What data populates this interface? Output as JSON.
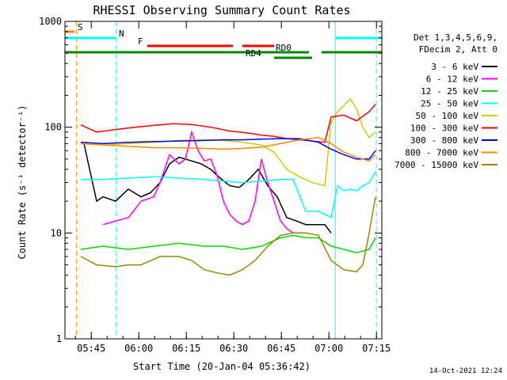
{
  "title": "RHESSI Observing Summary Count Rates",
  "xlabel": "Start Time (20-Jan-04 05:36:42)",
  "ylabel": "Count Rate (s⁻¹ detector⁻¹)",
  "timestamp": "14-Oct-2021 12:24",
  "legend_header": [
    "Det 1,3,4,5,6,9,",
    "FDecim 2, Att 0"
  ],
  "chart_data": {
    "type": "line",
    "x_unit": "minutes since 05:36:42",
    "xlim": [
      0,
      100
    ],
    "ylim": [
      1,
      1000
    ],
    "y_scale": "log",
    "xticks": [
      {
        "label": "05:45",
        "t": 8.3
      },
      {
        "label": "06:00",
        "t": 23.3
      },
      {
        "label": "06:15",
        "t": 38.3
      },
      {
        "label": "06:30",
        "t": 53.3
      },
      {
        "label": "06:45",
        "t": 68.3
      },
      {
        "label": "07:00",
        "t": 83.3
      },
      {
        "label": "07:15",
        "t": 98.3
      }
    ],
    "yticks": [
      {
        "label": "1",
        "v": 1
      },
      {
        "label": "10",
        "v": 10
      },
      {
        "label": "100",
        "v": 100
      },
      {
        "label": "1000",
        "v": 1000
      }
    ],
    "legend_position": "right",
    "series": [
      {
        "name": "3 - 6 keV",
        "color": "#000000",
        "x": [
          6,
          10,
          12,
          16,
          20,
          24,
          27,
          30,
          33,
          36,
          40,
          43,
          46,
          49,
          52,
          55,
          58,
          61,
          64,
          67,
          70,
          73,
          76,
          79,
          82,
          84
        ],
        "y": [
          70,
          20,
          22,
          20,
          26,
          22,
          24,
          30,
          45,
          52,
          48,
          45,
          40,
          33,
          28,
          27,
          32,
          40,
          28,
          22,
          14,
          13,
          12,
          12,
          12,
          10
        ]
      },
      {
        "name": "6 - 12 keV",
        "color": "#ff00ff",
        "x": [
          12,
          16,
          20,
          24,
          28,
          30,
          33,
          36,
          38,
          40,
          42,
          44,
          46,
          48,
          50,
          52,
          54,
          56,
          58,
          60,
          62,
          64,
          66,
          68,
          70,
          72
        ],
        "y": [
          12,
          13,
          14,
          20,
          22,
          30,
          55,
          45,
          50,
          90,
          60,
          48,
          50,
          35,
          20,
          15,
          13,
          12,
          13,
          20,
          50,
          30,
          20,
          13,
          11,
          10
        ]
      },
      {
        "name": "12 - 25 keV",
        "color": "#00dd00",
        "x": [
          5,
          12,
          20,
          28,
          36,
          44,
          50,
          56,
          62,
          68,
          72,
          76,
          80,
          84,
          88,
          92,
          96,
          98
        ],
        "y": [
          7,
          7.5,
          7,
          7.5,
          8,
          7.5,
          7.5,
          7,
          7.5,
          9,
          9.5,
          9,
          9,
          7.5,
          7,
          6.5,
          7,
          9
        ]
      },
      {
        "name": "25 - 50 keV",
        "color": "#00ffff",
        "x": [
          5,
          12,
          20,
          28,
          36,
          44,
          50,
          56,
          62,
          68,
          72,
          76,
          80,
          84,
          86,
          88,
          90,
          92,
          94,
          96,
          98
        ],
        "y": [
          32,
          32,
          33,
          34,
          33,
          32,
          31,
          30,
          31,
          32,
          32,
          16,
          16,
          14,
          28,
          25,
          26,
          25,
          28,
          30,
          38
        ]
      },
      {
        "name": "50 - 100 keV",
        "color": "#cccc00",
        "x": [
          5,
          12,
          20,
          28,
          36,
          44,
          50,
          56,
          62,
          66,
          70,
          74,
          78,
          82,
          84,
          86,
          88,
          90,
          92,
          94,
          96,
          98
        ],
        "y": [
          70,
          68,
          70,
          72,
          75,
          76,
          75,
          72,
          68,
          58,
          40,
          34,
          30,
          28,
          110,
          140,
          160,
          185,
          150,
          100,
          80,
          90
        ]
      },
      {
        "name": "100 - 300 keV",
        "color": "#ff0000",
        "x": [
          5,
          10,
          16,
          22,
          28,
          34,
          40,
          46,
          52,
          58,
          62,
          66,
          70,
          74,
          78,
          82,
          84,
          88,
          92,
          96,
          98
        ],
        "y": [
          105,
          90,
          95,
          100,
          104,
          108,
          106,
          100,
          92,
          88,
          84,
          82,
          78,
          76,
          74,
          72,
          125,
          130,
          115,
          140,
          165
        ]
      },
      {
        "name": "300 - 800 keV",
        "color": "#0000ff",
        "x": [
          5,
          12,
          20,
          28,
          36,
          44,
          50,
          56,
          62,
          68,
          74,
          80,
          84,
          88,
          92,
          96,
          98
        ],
        "y": [
          72,
          70,
          72,
          73,
          74,
          75,
          76,
          76,
          77,
          78,
          78,
          72,
          62,
          55,
          50,
          50,
          60
        ]
      },
      {
        "name": "800 - 7000 keV",
        "color": "#ff8800",
        "x": [
          5,
          12,
          20,
          28,
          36,
          44,
          50,
          56,
          62,
          68,
          74,
          80,
          84,
          88,
          92,
          96,
          98
        ],
        "y": [
          70,
          68,
          66,
          64,
          64,
          63,
          62,
          63,
          65,
          70,
          76,
          80,
          70,
          58,
          52,
          48,
          55
        ]
      },
      {
        "name": "7000 - 15000 keV",
        "color": "#998800",
        "x": [
          5,
          10,
          16,
          20,
          24,
          30,
          36,
          40,
          44,
          48,
          52,
          56,
          60,
          64,
          68,
          72,
          76,
          80,
          84,
          88,
          92,
          94,
          96,
          98
        ],
        "y": [
          6,
          5,
          4.8,
          5,
          5,
          6,
          6,
          5.5,
          4.5,
          4.2,
          4,
          4.5,
          5.5,
          7.5,
          9.5,
          10,
          10,
          9.5,
          5.5,
          4.5,
          4.3,
          5,
          10,
          22
        ]
      }
    ],
    "flags": [
      {
        "label": "S",
        "color": "#ff8800",
        "segments": [
          [
            0,
            3
          ]
        ]
      },
      {
        "label": "N",
        "color": "#00ffff",
        "segments": [
          [
            0,
            16
          ],
          [
            85.5,
            100
          ]
        ]
      },
      {
        "label": "F",
        "color": "#ff0000",
        "segments": [
          [
            26,
            53
          ],
          [
            56,
            66
          ]
        ]
      },
      {
        "label": "RD0",
        "color": "#008800",
        "segments": [
          [
            0,
            77
          ],
          [
            81,
            100
          ]
        ]
      },
      {
        "label": "RD4",
        "color": "#008800",
        "segments": [
          [
            66,
            78
          ]
        ]
      }
    ],
    "markers": [
      {
        "t": 3.6,
        "color": "#ff8800",
        "style": "dashed"
      },
      {
        "t": 16.2,
        "color": "#00ffff",
        "style": "dashed"
      },
      {
        "t": 85.3,
        "color": "#00ffff",
        "style": "solid"
      },
      {
        "t": 98.3,
        "color": "#00ffff",
        "style": "dashed"
      }
    ]
  }
}
